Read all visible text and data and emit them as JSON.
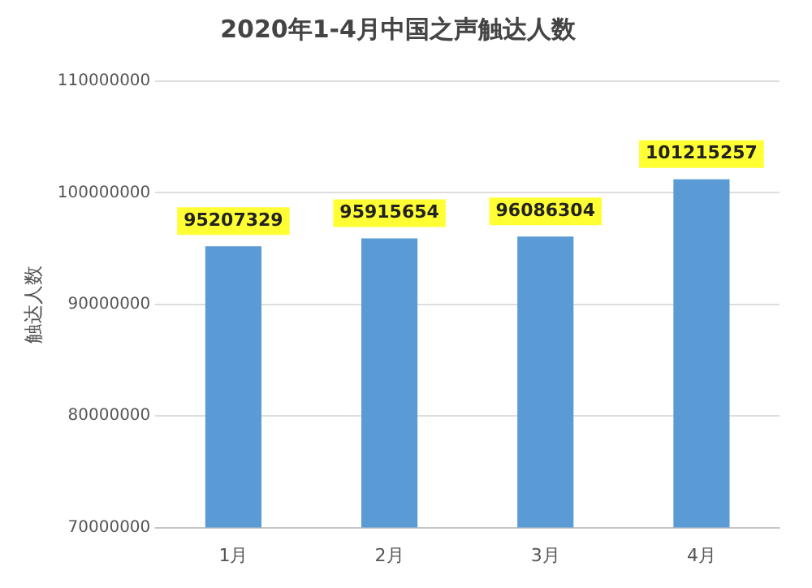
{
  "chart_data": {
    "type": "bar",
    "title": "2020年1-4月中国之声触达人数",
    "ylabel": "触达人数",
    "categories": [
      "1月",
      "2月",
      "3月",
      "4月"
    ],
    "values": [
      95207329,
      95915654,
      96086304,
      101215257
    ],
    "color": "#5b9bd5",
    "ylim": [
      70000000,
      110000000
    ],
    "yticks": [
      70000000,
      80000000,
      90000000,
      100000000,
      110000000
    ],
    "grid": "y",
    "data_labels": true,
    "legend": false
  }
}
